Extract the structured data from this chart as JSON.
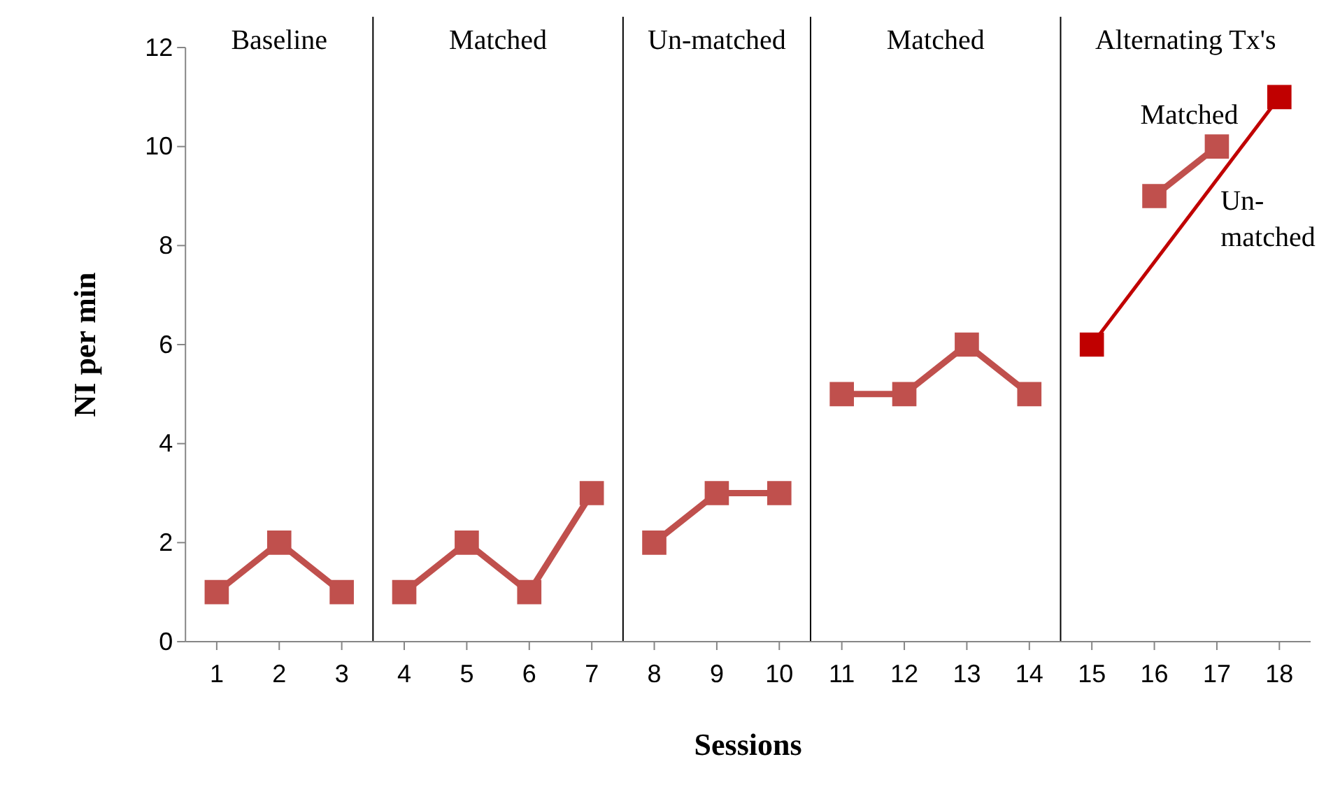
{
  "chart_data": {
    "type": "line",
    "xlabel": "Sessions",
    "ylabel": "NI per min",
    "xlim": [
      0.5,
      18.5
    ],
    "xticks": [
      1,
      2,
      3,
      4,
      5,
      6,
      7,
      8,
      9,
      10,
      11,
      12,
      13,
      14,
      15,
      16,
      17,
      18
    ],
    "ylim": [
      0,
      12
    ],
    "yticks": [
      0,
      2,
      4,
      6,
      8,
      10,
      12
    ],
    "grid": false,
    "marker": "square",
    "line_style": "solid",
    "series": [
      {
        "color": "#c0504d",
        "x": [
          1,
          2,
          3
        ],
        "values": [
          1,
          2,
          1
        ]
      },
      {
        "color": "#c0504d",
        "x": [
          4,
          5,
          6,
          7
        ],
        "values": [
          1,
          2,
          1,
          3
        ]
      },
      {
        "color": "#c0504d",
        "x": [
          8,
          9,
          10
        ],
        "values": [
          2,
          3,
          3
        ]
      },
      {
        "color": "#c0504d",
        "x": [
          11,
          12,
          13,
          14
        ],
        "values": [
          5,
          5,
          6,
          5
        ]
      },
      {
        "name": "Matched",
        "color": "#c0504d",
        "x": [
          16,
          17
        ],
        "values": [
          9,
          10
        ]
      },
      {
        "name": "Un-matched",
        "color": "#c00000",
        "x": [
          15,
          18
        ],
        "values": [
          6,
          11
        ]
      }
    ],
    "ref_lines": [
      {
        "axis": "x",
        "value": 3.5,
        "color": "#000000"
      },
      {
        "axis": "x",
        "value": 7.5,
        "color": "#000000"
      },
      {
        "axis": "x",
        "value": 10.5,
        "color": "#000000"
      },
      {
        "axis": "x",
        "value": 14.5,
        "color": "#000000"
      }
    ],
    "annotations": [
      "Baseline",
      "Matched",
      "Un-matched",
      "Matched",
      "Alternating Tx's"
    ]
  }
}
